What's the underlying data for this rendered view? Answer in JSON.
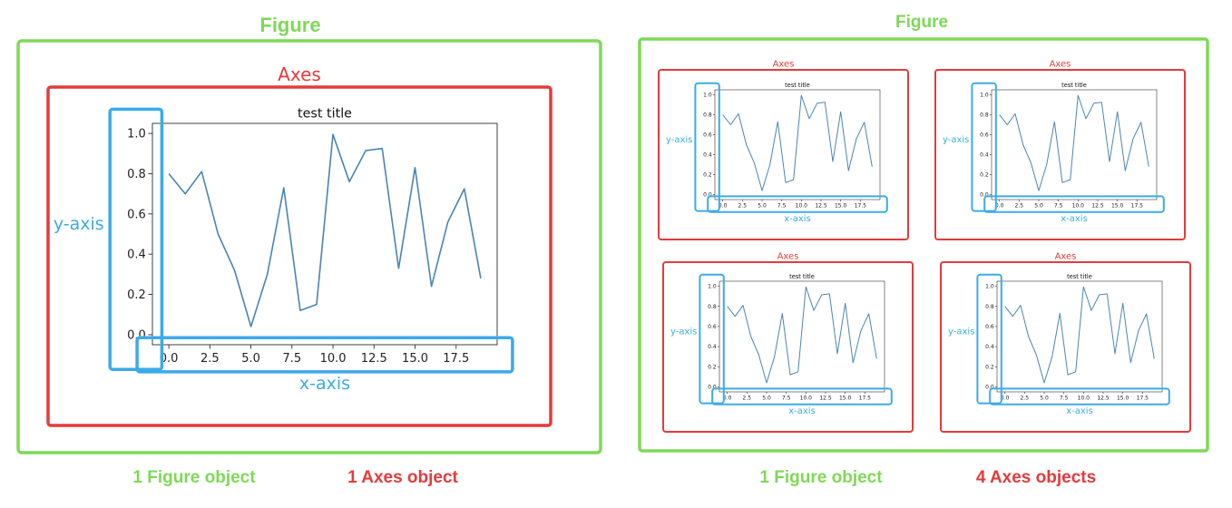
{
  "labels": {
    "figure": "Figure",
    "axes": "Axes",
    "y_axis": "y-axis",
    "x_axis": "x-axis"
  },
  "captions": {
    "left_figure": "1 Figure object",
    "left_axes": "1 Axes object",
    "right_figure": "1 Figure object",
    "right_axes": "4 Axes objects"
  },
  "colors": {
    "figure": "#7ed957",
    "axes": "#e63a3a",
    "axis_highlight": "#3aabea",
    "line": "#4a86b4"
  },
  "chart_data": {
    "type": "line",
    "title": "test title",
    "x": [
      0,
      1,
      2,
      3,
      4,
      5,
      6,
      7,
      8,
      9,
      10,
      11,
      12,
      13,
      14,
      15,
      16,
      17,
      18,
      19
    ],
    "y": [
      0.8,
      0.7,
      0.81,
      0.5,
      0.32,
      0.04,
      0.3,
      0.73,
      0.12,
      0.15,
      0.995,
      0.76,
      0.915,
      0.925,
      0.33,
      0.83,
      0.24,
      0.56,
      0.725,
      0.28
    ],
    "xlim": [
      -1,
      20
    ],
    "ylim": [
      -0.05,
      1.05
    ],
    "xticks": [
      0,
      2.5,
      5,
      7.5,
      10,
      12.5,
      15,
      17.5
    ],
    "xtick_labels": [
      "0.0",
      "2.5",
      "5.0",
      "7.5",
      "10.0",
      "12.5",
      "15.0",
      "17.5"
    ],
    "yticks": [
      0,
      0.2,
      0.4,
      0.6,
      0.8,
      1.0
    ],
    "ytick_labels": [
      "0.0",
      "0.2",
      "0.4",
      "0.6",
      "0.8",
      "1.0"
    ]
  }
}
